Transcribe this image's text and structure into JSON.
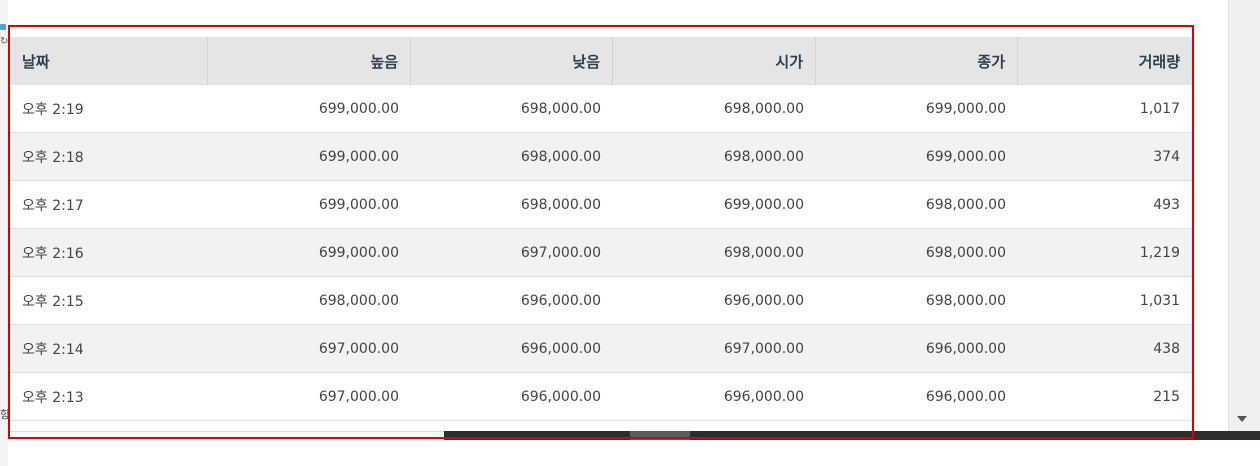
{
  "table": {
    "columns": [
      "날짜",
      "높음",
      "낮음",
      "시가",
      "종가",
      "거래량"
    ],
    "rows": [
      [
        "오후 2:19",
        "699,000.00",
        "698,000.00",
        "698,000.00",
        "699,000.00",
        "1,017"
      ],
      [
        "오후 2:18",
        "699,000.00",
        "698,000.00",
        "698,000.00",
        "699,000.00",
        "374"
      ],
      [
        "오후 2:17",
        "699,000.00",
        "698,000.00",
        "699,000.00",
        "698,000.00",
        "493"
      ],
      [
        "오후 2:16",
        "699,000.00",
        "697,000.00",
        "698,000.00",
        "698,000.00",
        "1,219"
      ],
      [
        "오후 2:15",
        "698,000.00",
        "696,000.00",
        "696,000.00",
        "698,000.00",
        "1,031"
      ],
      [
        "오후 2:14",
        "697,000.00",
        "696,000.00",
        "697,000.00",
        "696,000.00",
        "438"
      ],
      [
        "오후 2:13",
        "697,000.00",
        "696,000.00",
        "696,000.00",
        "696,000.00",
        "215"
      ]
    ]
  },
  "left_edge": {
    "partial_text": "항"
  },
  "icons": {
    "scroll_down": "triangle-down-icon"
  },
  "colors": {
    "selection_outline": "#e00000",
    "header_bg": "#e5e5e5",
    "header_text": "#2e3f52",
    "alt_row_bg": "#f2f2f2"
  }
}
